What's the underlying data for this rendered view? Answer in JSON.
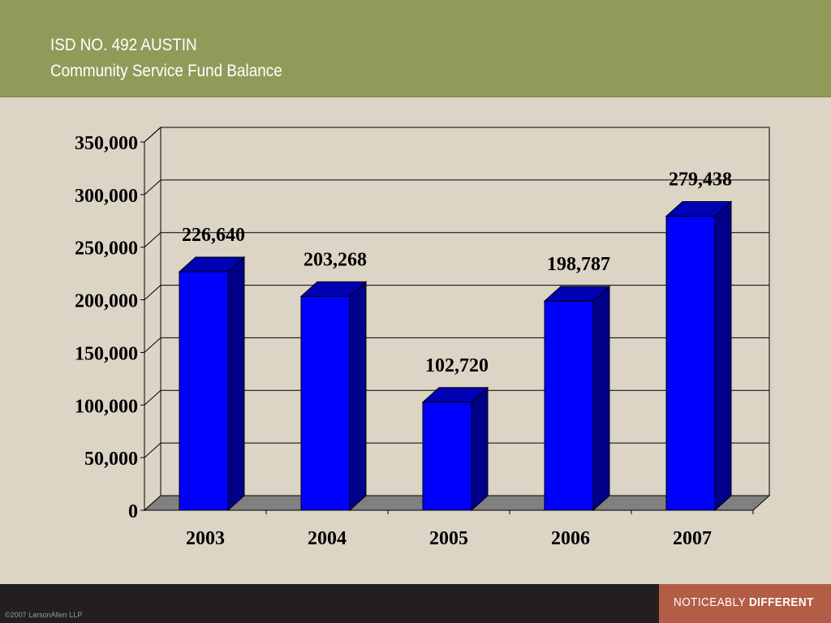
{
  "header": {
    "title_line1": "ISD NO. 492 AUSTIN",
    "title_line2": "Community Service Fund Balance"
  },
  "footer": {
    "copyright": "©2007 LarsonAllen LLP",
    "tagline_regular": "NOTICEABLY ",
    "tagline_bold": "DIFFERENT"
  },
  "colors": {
    "header_bg": "#929a5a",
    "bar_front": "#0000ff",
    "bar_side": "#00008b",
    "bar_top": "#0000b4",
    "floor": "#808080",
    "footer_bg": "#231f20",
    "tagline_bg": "#b45d46"
  },
  "chart_data": {
    "type": "bar",
    "categories": [
      "2003",
      "2004",
      "2005",
      "2006",
      "2007"
    ],
    "values": [
      226640,
      203268,
      102720,
      198787,
      279438
    ],
    "data_labels": [
      "226,640",
      "203,268",
      "102,720",
      "198,787",
      "279,438"
    ],
    "yticks": [
      "0",
      "50,000",
      "100,000",
      "150,000",
      "200,000",
      "250,000",
      "300,000",
      "350,000"
    ],
    "ylim": [
      0,
      350000
    ],
    "grid": true,
    "legend": "none",
    "style": "3d"
  }
}
